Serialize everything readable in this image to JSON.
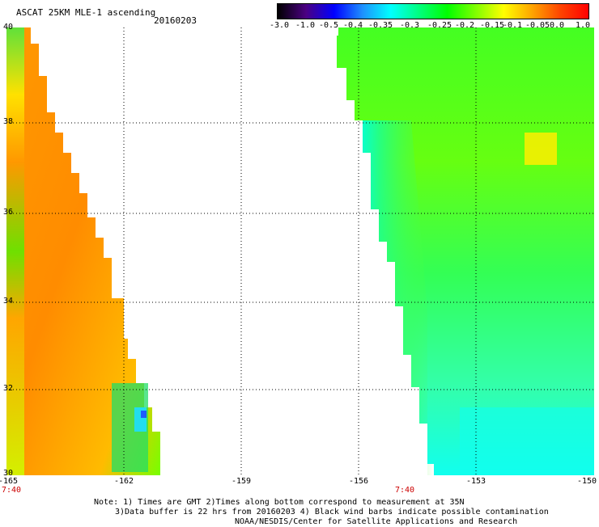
{
  "header": {
    "title": "ASCAT 25KM MLE-1 ascending",
    "date": "20160203"
  },
  "colorbar": {
    "labels": [
      "-3.0",
      "-1.0",
      "-0.5",
      "-0.4",
      "-0.35",
      "-0.3",
      "-0.25",
      "-0.2",
      "-0.15",
      "-0.1",
      "-0.05",
      "0.0",
      "1.0"
    ],
    "colors": [
      "#000000",
      "#4b0082",
      "#0000ff",
      "#1e90ff",
      "#00ffff",
      "#00ff7f",
      "#00ff00",
      "#7fff00",
      "#ffff00",
      "#ffa500",
      "#ff4500",
      "#ff0000"
    ]
  },
  "axes": {
    "lat_ticks": [
      "40",
      "38",
      "36",
      "34",
      "32",
      "30"
    ],
    "lon_ticks": [
      "-165",
      "-162",
      "-159",
      "-156",
      "-153",
      "-150"
    ],
    "time_labels": [
      "7:40",
      "7:40"
    ],
    "grid": "dotted"
  },
  "swaths": {
    "west": {
      "dominant_color": "#ff8c00",
      "range": "-0.05 to 0.0"
    },
    "east": {
      "dominant_color": "#66ff00",
      "range": "-0.3 to -0.1"
    }
  },
  "notes": {
    "line1": "Note: 1) Times are GMT 2)Times along bottom correspond to measurement at 35N",
    "line2": "3)Data buffer is 22 hrs from 20160203 4) Black wind barbs indicate possible contamination",
    "line3": "NOAA/NESDIS/Center for Satellite Applications and Research"
  }
}
